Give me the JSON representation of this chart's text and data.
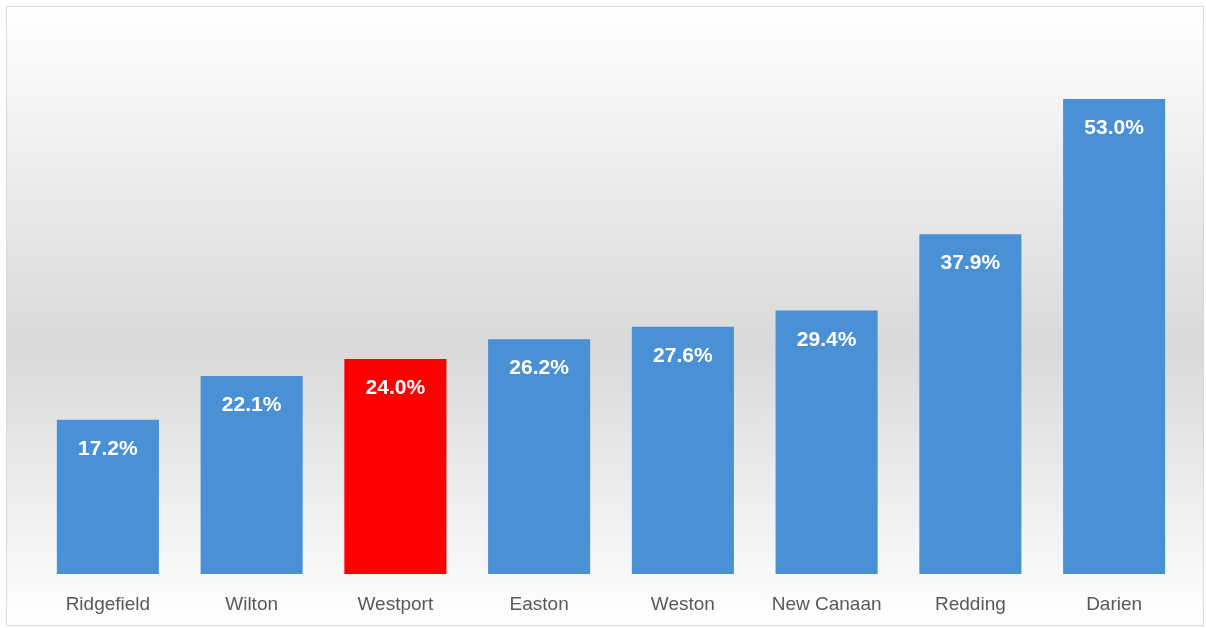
{
  "chart_data": {
    "type": "bar",
    "categories": [
      "Ridgefield",
      "Wilton",
      "Westport",
      "Easton",
      "Weston",
      "New Canaan",
      "Redding",
      "Darien"
    ],
    "values": [
      17.2,
      22.1,
      24.0,
      26.2,
      27.6,
      29.4,
      37.9,
      53.0
    ],
    "colors": [
      "#4a90d4",
      "#4a90d4",
      "#ff0000",
      "#4a90d4",
      "#4a90d4",
      "#4a90d4",
      "#4a90d4",
      "#4a90d4"
    ],
    "value_labels": [
      "17.2%",
      "22.1%",
      "24.0%",
      "26.2%",
      "27.6%",
      "29.4%",
      "37.9%",
      "53.0%"
    ]
  }
}
